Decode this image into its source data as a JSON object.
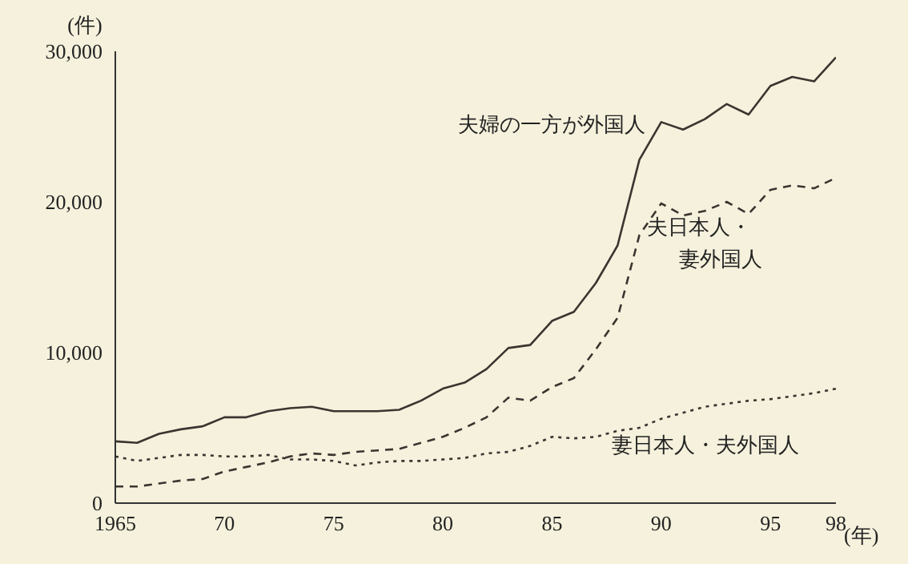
{
  "chart_data": {
    "type": "line",
    "ylabel": "(件)",
    "xlabel": "(年)",
    "x": [
      1965,
      1966,
      1967,
      1968,
      1969,
      1970,
      1971,
      1972,
      1973,
      1974,
      1975,
      1976,
      1977,
      1978,
      1979,
      1980,
      1981,
      1982,
      1983,
      1984,
      1985,
      1986,
      1987,
      1988,
      1989,
      1990,
      1991,
      1992,
      1993,
      1994,
      1995,
      1996,
      1997,
      1998
    ],
    "series": [
      {
        "name": "夫婦の一方が外国人",
        "color": "#3a3530",
        "line_style": "solid",
        "values": [
          4100,
          4000,
          4600,
          4900,
          5100,
          5700,
          5700,
          6100,
          6300,
          6400,
          6100,
          6100,
          6100,
          6200,
          6800,
          7600,
          8000,
          8900,
          10300,
          10500,
          12100,
          12700,
          14600,
          17100,
          22800,
          25300,
          24800,
          25500,
          26500,
          25800,
          27700,
          28300,
          28000,
          29600
        ]
      },
      {
        "name": "夫日本人・妻外国人",
        "color": "#3a3530",
        "line_style": "dashed",
        "values": [
          1100,
          1100,
          1300,
          1500,
          1600,
          2100,
          2400,
          2700,
          3100,
          3300,
          3200,
          3400,
          3500,
          3600,
          4000,
          4400,
          5000,
          5700,
          7000,
          6800,
          7700,
          8300,
          10200,
          12300,
          17800,
          19900,
          19100,
          19400,
          20000,
          19200,
          20800,
          21100,
          20900,
          21600
        ]
      },
      {
        "name": "妻日本人・夫外国人",
        "color": "#3a3530",
        "line_style": "dotted",
        "values": [
          3100,
          2800,
          3000,
          3200,
          3200,
          3100,
          3100,
          3200,
          2900,
          2900,
          2800,
          2500,
          2700,
          2800,
          2800,
          2900,
          3000,
          3300,
          3400,
          3800,
          4400,
          4300,
          4400,
          4800,
          5000,
          5600,
          6000,
          6400,
          6600,
          6800,
          6900,
          7100,
          7300,
          7600
        ]
      }
    ],
    "xlim": [
      1965,
      1998
    ],
    "ylim": [
      0,
      30000
    ],
    "xticks": [
      1965,
      {
        "value": 1970,
        "label": "70"
      },
      {
        "value": 1975,
        "label": "75"
      },
      {
        "value": 1980,
        "label": "80"
      },
      {
        "value": 1985,
        "label": "85"
      },
      {
        "value": 1990,
        "label": "90"
      },
      {
        "value": 1995,
        "label": "95"
      },
      {
        "value": 1998,
        "label": "98"
      }
    ],
    "yticks": [
      0,
      {
        "value": 10000,
        "label": "10,000"
      },
      {
        "value": 20000,
        "label": "20,000"
      },
      {
        "value": 30000,
        "label": "30,000"
      }
    ],
    "grid": false,
    "legend": false,
    "marker": "none"
  }
}
